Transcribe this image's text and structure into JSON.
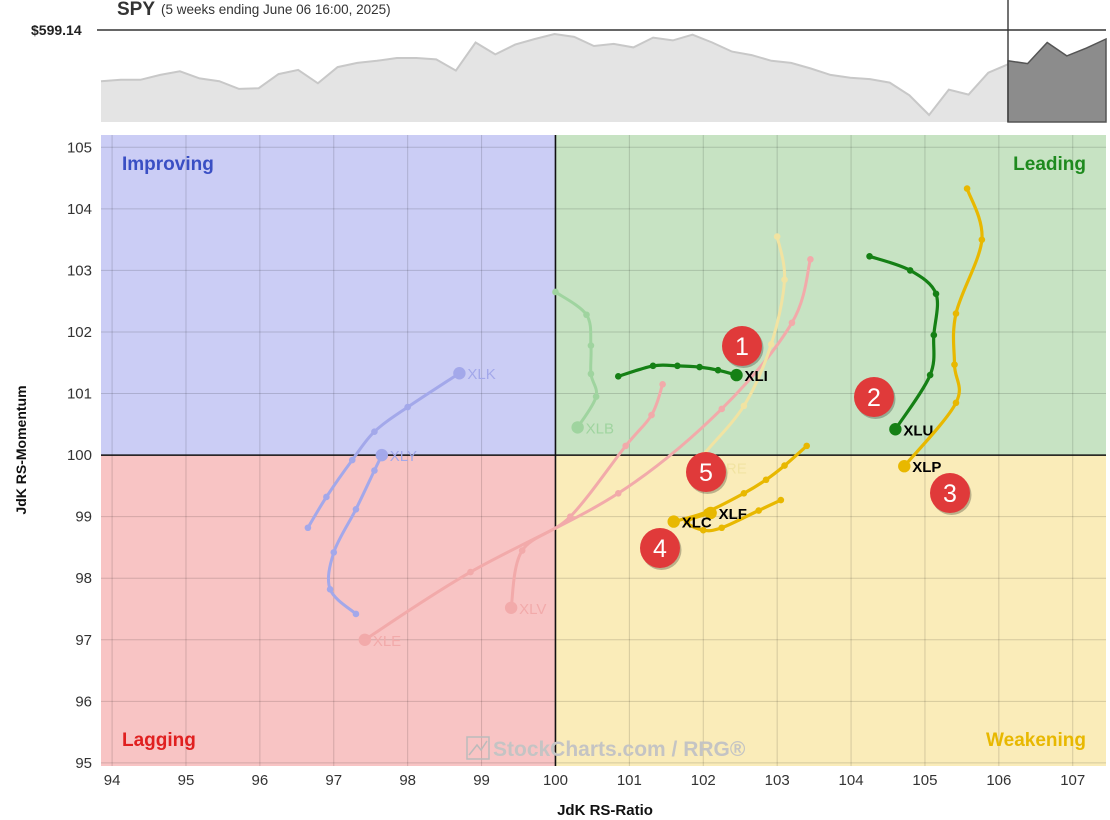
{
  "header": {
    "symbol": "SPY",
    "period": "(5 weeks ending June 06 16:00, 2025)",
    "price_label": "$599.14"
  },
  "watermark": "StockCharts.com / RRG®",
  "quadrants": {
    "improving": {
      "label": "Improving",
      "color": "#3a4fc4",
      "fill": "#cbcdf5"
    },
    "leading": {
      "label": "Leading",
      "color": "#1e8a1e",
      "fill": "#c7e3c3"
    },
    "lagging": {
      "label": "Lagging",
      "color": "#e02020",
      "fill": "#f8c4c4"
    },
    "weakening": {
      "label": "Weakening",
      "color": "#e8b800",
      "fill": "#faecb9"
    }
  },
  "callouts": [
    "1",
    "2",
    "3",
    "4",
    "5"
  ],
  "chart_data": [
    {
      "type": "area",
      "title": "SPY",
      "subtitle": "(5 weeks ending June 06 16:00, 2025)",
      "current_value_label": "$599.14",
      "y_reference": 599.14,
      "series": [
        {
          "values": [
            0.58,
            0.6,
            0.6,
            0.67,
            0.72,
            0.62,
            0.58,
            0.47,
            0.48,
            0.68,
            0.74,
            0.55,
            0.78,
            0.84,
            0.87,
            0.91,
            0.91,
            0.89,
            0.73,
            1.13,
            0.96,
            1.1,
            1.18,
            1.25,
            1.21,
            1.08,
            1.11,
            1.06,
            1.2,
            1.16,
            1.24,
            1.13,
            1.0,
            0.95,
            0.87,
            0.84,
            0.76,
            0.67,
            0.63,
            0.61,
            0.56,
            0.38,
            0.1,
            0.46,
            0.39,
            0.7,
            0.82
          ]
        },
        {
          "values": [
            0.87,
            0.83,
            1.13,
            0.94,
            1.05,
            1.18
          ]
        }
      ]
    },
    {
      "type": "scatter",
      "xlabel": "JdK RS-Ratio",
      "ylabel": "JdK RS-Momentum",
      "xlim": [
        93.85,
        107.45
      ],
      "ylim": [
        94.95,
        105.2
      ],
      "center": [
        100,
        100
      ],
      "xticks": [
        "94",
        "95",
        "96",
        "97",
        "98",
        "99",
        "100",
        "101",
        "102",
        "103",
        "104",
        "105",
        "106",
        "107"
      ],
      "yticks": [
        "95",
        "96",
        "97",
        "98",
        "99",
        "100",
        "101",
        "102",
        "103",
        "104",
        "105"
      ],
      "grid": true,
      "series": [
        {
          "name": "XLI",
          "color": "#158015",
          "highlight": true,
          "points": [
            [
              100.85,
              101.28
            ],
            [
              101.32,
              101.45
            ],
            [
              101.65,
              101.45
            ],
            [
              101.95,
              101.43
            ],
            [
              102.2,
              101.38
            ],
            [
              102.45,
              101.3
            ]
          ]
        },
        {
          "name": "XLU",
          "color": "#158015",
          "highlight": true,
          "points": [
            [
              104.25,
              103.23
            ],
            [
              104.8,
              103.0
            ],
            [
              105.15,
              102.62
            ],
            [
              105.12,
              101.95
            ],
            [
              105.07,
              101.3
            ],
            [
              104.6,
              100.42
            ]
          ]
        },
        {
          "name": "XLP",
          "color": "#e8b800",
          "highlight": true,
          "points": [
            [
              105.57,
              104.33
            ],
            [
              105.77,
              103.5
            ],
            [
              105.42,
              102.3
            ],
            [
              105.4,
              101.47
            ],
            [
              105.42,
              100.85
            ],
            [
              104.72,
              99.82
            ]
          ]
        },
        {
          "name": "XLF",
          "color": "#e8b800",
          "highlight": true,
          "points": [
            [
              103.05,
              99.27
            ],
            [
              102.75,
              99.1
            ],
            [
              102.25,
              98.82
            ],
            [
              102.0,
              98.78
            ],
            [
              101.78,
              98.92
            ],
            [
              102.1,
              99.06
            ]
          ]
        },
        {
          "name": "XLC",
          "color": "#e8b800",
          "highlight": true,
          "points": [
            [
              103.4,
              100.15
            ],
            [
              103.1,
              99.83
            ],
            [
              102.85,
              99.6
            ],
            [
              102.55,
              99.38
            ],
            [
              102.05,
              99.08
            ],
            [
              101.6,
              98.92
            ]
          ]
        },
        {
          "name": "XLK",
          "color": "#a3a8ea",
          "highlight": false,
          "points": [
            [
              96.65,
              98.82
            ],
            [
              96.9,
              99.32
            ],
            [
              97.25,
              99.92
            ],
            [
              97.55,
              100.38
            ],
            [
              98.0,
              100.78
            ],
            [
              98.7,
              101.33
            ]
          ]
        },
        {
          "name": "XLY",
          "color": "#a3a8ea",
          "highlight": false,
          "points": [
            [
              97.3,
              97.42
            ],
            [
              96.95,
              97.82
            ],
            [
              97.0,
              98.42
            ],
            [
              97.3,
              99.12
            ],
            [
              97.55,
              99.75
            ],
            [
              97.65,
              100.0
            ]
          ]
        },
        {
          "name": "XLB",
          "color": "#9fd49f",
          "highlight": false,
          "points": [
            [
              100.0,
              102.65
            ],
            [
              100.42,
              102.28
            ],
            [
              100.48,
              101.78
            ],
            [
              100.48,
              101.32
            ],
            [
              100.55,
              100.95
            ],
            [
              100.3,
              100.45
            ]
          ]
        },
        {
          "name": "XLE",
          "color": "#f2aaaa",
          "highlight": false,
          "points": [
            [
              103.45,
              103.18
            ],
            [
              103.2,
              102.15
            ],
            [
              102.25,
              100.75
            ],
            [
              100.85,
              99.38
            ],
            [
              98.85,
              98.1
            ],
            [
              97.42,
              97.0
            ]
          ]
        },
        {
          "name": "XLV",
          "color": "#f2aaaa",
          "highlight": false,
          "points": [
            [
              101.45,
              101.15
            ],
            [
              101.3,
              100.65
            ],
            [
              100.95,
              100.15
            ],
            [
              100.2,
              99.0
            ],
            [
              99.55,
              98.45
            ],
            [
              99.4,
              97.52
            ]
          ]
        },
        {
          "name": "XLRE",
          "color": "#f1e3a2",
          "highlight": false,
          "points": [
            [
              103.0,
              103.55
            ],
            [
              103.1,
              102.85
            ],
            [
              102.92,
              101.8
            ],
            [
              102.55,
              100.8
            ],
            [
              102.0,
              100.0
            ],
            [
              101.95,
              99.8
            ]
          ]
        }
      ]
    }
  ]
}
